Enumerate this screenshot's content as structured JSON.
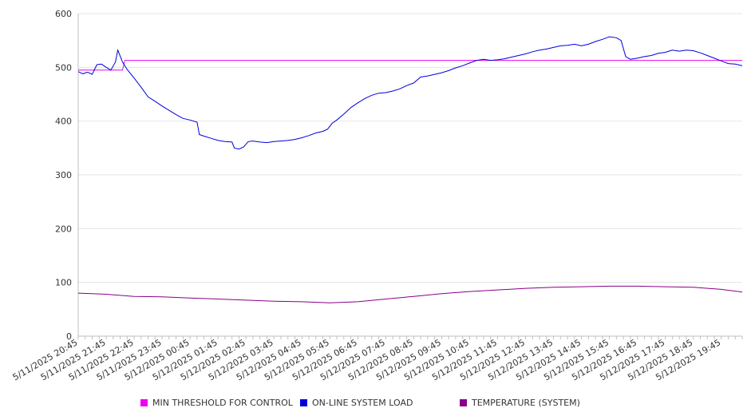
{
  "chart_data": {
    "type": "line",
    "title": "",
    "xlabel": "",
    "ylabel": "",
    "ylim": [
      0,
      600
    ],
    "y_ticks": [
      0,
      100,
      200,
      300,
      400,
      500,
      600
    ],
    "grid": "horizontal",
    "legend_position": "bottom",
    "x_tick_labels": [
      "5/11/2025 20:45",
      "5/11/2025 21:45",
      "5/11/2025 22:45",
      "5/11/2025 23:45",
      "5/12/2025 00:45",
      "5/12/2025 01:45",
      "5/12/2025 02:45",
      "5/12/2025 03:45",
      "5/12/2025 04:45",
      "5/12/2025 05:45",
      "5/12/2025 06:45",
      "5/12/2025 07:45",
      "5/12/2025 08:45",
      "5/12/2025 09:45",
      "5/12/2025 10:45",
      "5/12/2025 11:45",
      "5/12/2025 12:45",
      "5/12/2025 13:45",
      "5/12/2025 14:45",
      "5/12/2025 15:45",
      "5/12/2025 16:45",
      "5/12/2025 17:45",
      "5/12/2025 18:45",
      "5/12/2025 19:45"
    ],
    "series": [
      {
        "name": "MIN THRESHOLD FOR CONTROL",
        "color": "#ee00ee",
        "points": [
          [
            "5/11/2025 20:45",
            495
          ],
          [
            "5/11/2025 22:20",
            495
          ],
          [
            "5/11/2025 22:25",
            513
          ],
          [
            "5/12/2025 20:30",
            513
          ]
        ]
      },
      {
        "name": "ON-LINE SYSTEM LOAD",
        "color": "#0000dd",
        "points": [
          [
            "5/11/2025 20:45",
            492
          ],
          [
            "5/11/2025 20:55",
            488
          ],
          [
            "5/11/2025 21:05",
            491
          ],
          [
            "5/11/2025 21:15",
            487
          ],
          [
            "5/11/2025 21:25",
            505
          ],
          [
            "5/11/2025 21:35",
            506
          ],
          [
            "5/11/2025 21:45",
            500
          ],
          [
            "5/11/2025 21:55",
            495
          ],
          [
            "5/11/2025 22:05",
            510
          ],
          [
            "5/11/2025 22:10",
            532
          ],
          [
            "5/11/2025 22:20",
            510
          ],
          [
            "5/11/2025 22:30",
            496
          ],
          [
            "5/11/2025 22:45",
            480
          ],
          [
            "5/11/2025 23:00",
            463
          ],
          [
            "5/11/2025 23:15",
            445
          ],
          [
            "5/11/2025 23:30",
            437
          ],
          [
            "5/11/2025 23:45",
            428
          ],
          [
            "5/12/2025 00:00",
            420
          ],
          [
            "5/12/2025 00:15",
            412
          ],
          [
            "5/12/2025 00:30",
            405
          ],
          [
            "5/12/2025 00:45",
            402
          ],
          [
            "5/12/2025 01:00",
            398
          ],
          [
            "5/12/2025 01:05",
            375
          ],
          [
            "5/12/2025 01:15",
            372
          ],
          [
            "5/12/2025 01:30",
            368
          ],
          [
            "5/12/2025 01:45",
            364
          ],
          [
            "5/12/2025 02:00",
            362
          ],
          [
            "5/12/2025 02:15",
            361
          ],
          [
            "5/12/2025 02:20",
            350
          ],
          [
            "5/12/2025 02:30",
            348
          ],
          [
            "5/12/2025 02:40",
            352
          ],
          [
            "5/12/2025 02:50",
            362
          ],
          [
            "5/12/2025 03:00",
            363
          ],
          [
            "5/12/2025 03:15",
            361
          ],
          [
            "5/12/2025 03:30",
            360
          ],
          [
            "5/12/2025 03:45",
            362
          ],
          [
            "5/12/2025 04:00",
            363
          ],
          [
            "5/12/2025 04:15",
            364
          ],
          [
            "5/12/2025 04:30",
            366
          ],
          [
            "5/12/2025 04:45",
            369
          ],
          [
            "5/12/2025 05:00",
            373
          ],
          [
            "5/12/2025 05:15",
            378
          ],
          [
            "5/12/2025 05:30",
            381
          ],
          [
            "5/12/2025 05:40",
            385
          ],
          [
            "5/12/2025 05:50",
            396
          ],
          [
            "5/12/2025 06:00",
            402
          ],
          [
            "5/12/2025 06:15",
            413
          ],
          [
            "5/12/2025 06:30",
            425
          ],
          [
            "5/12/2025 06:45",
            434
          ],
          [
            "5/12/2025 07:00",
            442
          ],
          [
            "5/12/2025 07:15",
            448
          ],
          [
            "5/12/2025 07:30",
            452
          ],
          [
            "5/12/2025 07:45",
            453
          ],
          [
            "5/12/2025 08:00",
            456
          ],
          [
            "5/12/2025 08:15",
            460
          ],
          [
            "5/12/2025 08:30",
            466
          ],
          [
            "5/12/2025 08:45",
            471
          ],
          [
            "5/12/2025 09:00",
            482
          ],
          [
            "5/12/2025 09:15",
            484
          ],
          [
            "5/12/2025 09:30",
            487
          ],
          [
            "5/12/2025 09:45",
            490
          ],
          [
            "5/12/2025 10:00",
            494
          ],
          [
            "5/12/2025 10:15",
            499
          ],
          [
            "5/12/2025 10:30",
            503
          ],
          [
            "5/12/2025 10:45",
            508
          ],
          [
            "5/12/2025 11:00",
            513
          ],
          [
            "5/12/2025 11:15",
            515
          ],
          [
            "5/12/2025 11:30",
            513
          ],
          [
            "5/12/2025 11:45",
            514
          ],
          [
            "5/12/2025 12:00",
            516
          ],
          [
            "5/12/2025 12:15",
            519
          ],
          [
            "5/12/2025 12:30",
            522
          ],
          [
            "5/12/2025 12:45",
            525
          ],
          [
            "5/12/2025 13:00",
            529
          ],
          [
            "5/12/2025 13:15",
            532
          ],
          [
            "5/12/2025 13:30",
            534
          ],
          [
            "5/12/2025 13:45",
            537
          ],
          [
            "5/12/2025 14:00",
            540
          ],
          [
            "5/12/2025 14:15",
            541
          ],
          [
            "5/12/2025 14:30",
            543
          ],
          [
            "5/12/2025 14:45",
            540
          ],
          [
            "5/12/2025 15:00",
            543
          ],
          [
            "5/12/2025 15:15",
            548
          ],
          [
            "5/12/2025 15:30",
            552
          ],
          [
            "5/12/2025 15:45",
            557
          ],
          [
            "5/12/2025 16:00",
            555
          ],
          [
            "5/12/2025 16:10",
            550
          ],
          [
            "5/12/2025 16:20",
            520
          ],
          [
            "5/12/2025 16:30",
            515
          ],
          [
            "5/12/2025 16:45",
            517
          ],
          [
            "5/12/2025 17:00",
            520
          ],
          [
            "5/12/2025 17:15",
            522
          ],
          [
            "5/12/2025 17:30",
            526
          ],
          [
            "5/12/2025 17:45",
            528
          ],
          [
            "5/12/2025 18:00",
            532
          ],
          [
            "5/12/2025 18:15",
            530
          ],
          [
            "5/12/2025 18:30",
            532
          ],
          [
            "5/12/2025 18:45",
            531
          ],
          [
            "5/12/2025 19:00",
            527
          ],
          [
            "5/12/2025 19:15",
            522
          ],
          [
            "5/12/2025 19:30",
            517
          ],
          [
            "5/12/2025 19:45",
            512
          ],
          [
            "5/12/2025 20:00",
            507
          ],
          [
            "5/12/2025 20:15",
            506
          ],
          [
            "5/12/2025 20:30",
            503
          ]
        ]
      },
      {
        "name": "TEMPERATURE (SYSTEM)",
        "color": "#880088",
        "points": [
          [
            "5/11/2025 20:45",
            80
          ],
          [
            "5/11/2025 21:45",
            78
          ],
          [
            "5/11/2025 22:45",
            74
          ],
          [
            "5/11/2025 23:45",
            73
          ],
          [
            "5/12/2025 00:45",
            71
          ],
          [
            "5/12/2025 01:45",
            69
          ],
          [
            "5/12/2025 02:45",
            67
          ],
          [
            "5/12/2025 03:45",
            65
          ],
          [
            "5/12/2025 04:45",
            64
          ],
          [
            "5/12/2025 05:45",
            62
          ],
          [
            "5/12/2025 06:45",
            64
          ],
          [
            "5/12/2025 07:45",
            69
          ],
          [
            "5/12/2025 08:45",
            74
          ],
          [
            "5/12/2025 09:45",
            79
          ],
          [
            "5/12/2025 10:45",
            83
          ],
          [
            "5/12/2025 11:45",
            86
          ],
          [
            "5/12/2025 12:45",
            89
          ],
          [
            "5/12/2025 13:45",
            91
          ],
          [
            "5/12/2025 14:45",
            92
          ],
          [
            "5/12/2025 15:45",
            93
          ],
          [
            "5/12/2025 16:45",
            93
          ],
          [
            "5/12/2025 17:45",
            92
          ],
          [
            "5/12/2025 18:45",
            91
          ],
          [
            "5/12/2025 19:45",
            87
          ],
          [
            "5/12/2025 20:30",
            82
          ]
        ]
      }
    ]
  }
}
